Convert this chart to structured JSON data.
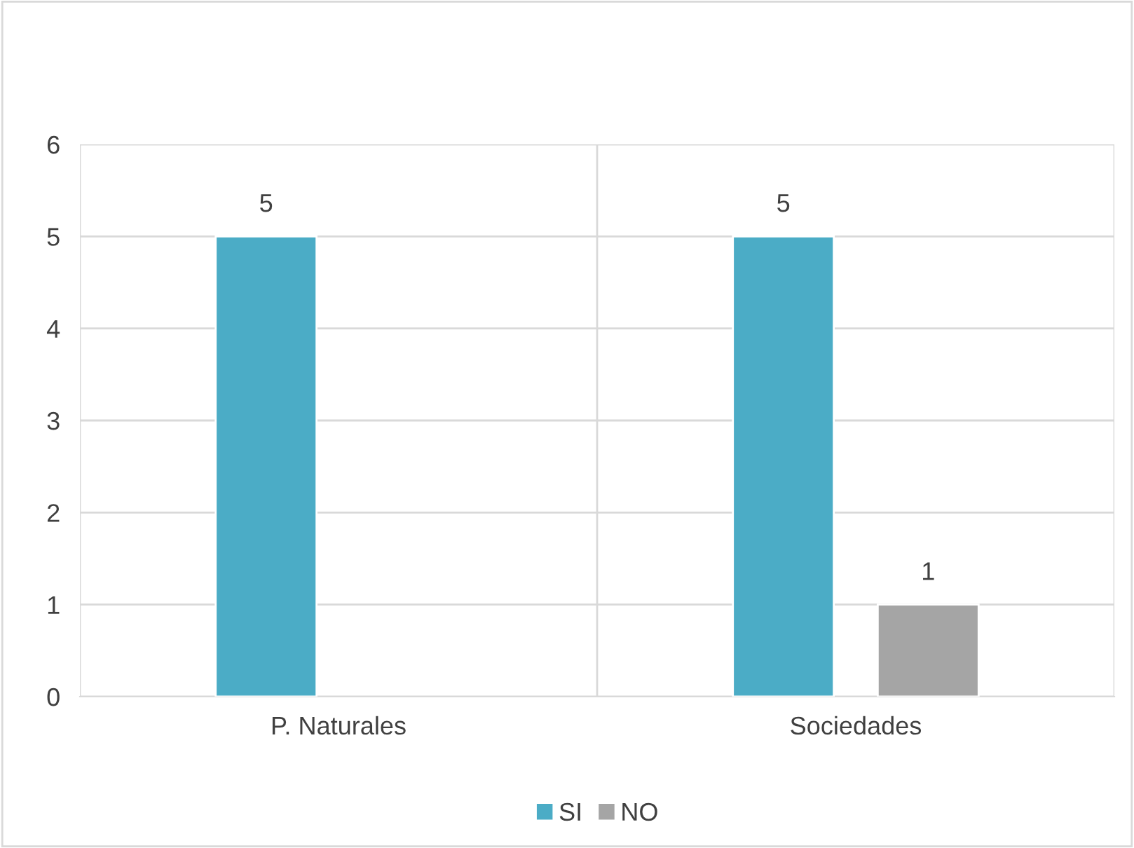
{
  "chart_data": {
    "type": "bar",
    "categories": [
      "P. Naturales",
      "Sociedades"
    ],
    "series": [
      {
        "name": "SI",
        "color": "#4bacc6",
        "values": [
          5,
          5
        ]
      },
      {
        "name": "NO",
        "color": "#a5a5a5",
        "values": [
          null,
          1
        ]
      }
    ],
    "ylim": [
      0,
      6
    ],
    "yticks": [
      0,
      1,
      2,
      3,
      4,
      5,
      6
    ],
    "grid": true,
    "legend": "bottom",
    "data_labels": true
  }
}
